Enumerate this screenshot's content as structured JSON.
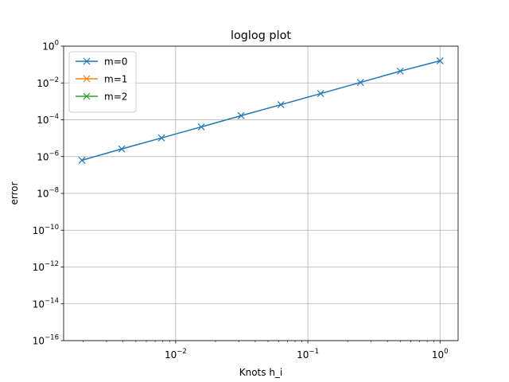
{
  "chart_data": {
    "type": "line",
    "title": "loglog plot",
    "xlabel": "Knots h_i",
    "ylabel": "error",
    "xscale": "log",
    "yscale": "log",
    "xlim": [
      0.00142,
      1.37
    ],
    "ylim": [
      1e-16,
      1
    ],
    "xticks": [
      {
        "value": 0.01,
        "base": "10",
        "exp": "−2"
      },
      {
        "value": 0.1,
        "base": "10",
        "exp": "−1"
      },
      {
        "value": 1,
        "base": "10",
        "exp": "0"
      }
    ],
    "yticks": [
      {
        "value": 1,
        "base": "10",
        "exp": "0"
      },
      {
        "value": 0.01,
        "base": "10",
        "exp": "−2"
      },
      {
        "value": 0.0001,
        "base": "10",
        "exp": "−4"
      },
      {
        "value": 1e-06,
        "base": "10",
        "exp": "−6"
      },
      {
        "value": 1e-08,
        "base": "10",
        "exp": "−8"
      },
      {
        "value": 1e-10,
        "base": "10",
        "exp": "−10"
      },
      {
        "value": 1e-12,
        "base": "10",
        "exp": "−12"
      },
      {
        "value": 1e-14,
        "base": "10",
        "exp": "−14"
      },
      {
        "value": 1e-16,
        "base": "10",
        "exp": "−16"
      }
    ],
    "grid": true,
    "legend_position": "upper-left",
    "series": [
      {
        "name": "m=0",
        "color": "#1f77b4",
        "marker": "x",
        "x": [
          0.001953125,
          0.00390625,
          0.0078125,
          0.015625,
          0.03125,
          0.0625,
          0.125,
          0.25,
          0.5,
          1.0
        ],
        "y": [
          6.3e-07,
          2.6e-06,
          1.03e-05,
          4.1e-05,
          0.000167,
          0.00066,
          0.00265,
          0.0107,
          0.044,
          0.16
        ]
      },
      {
        "name": "m=1",
        "color": "#ff7f0e",
        "marker": "x",
        "x": [],
        "y": []
      },
      {
        "name": "m=2",
        "color": "#2ca02c",
        "marker": "x",
        "x": [],
        "y": []
      }
    ]
  }
}
